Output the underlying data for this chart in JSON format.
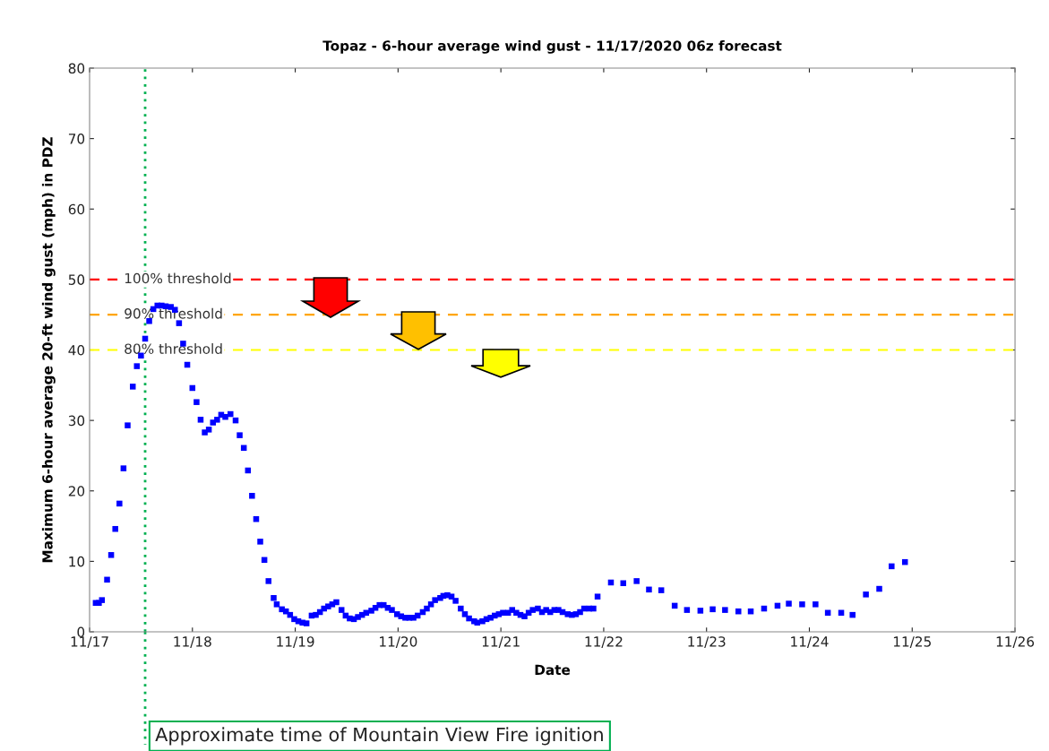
{
  "chart_data": {
    "type": "scatter",
    "title": "Topaz - 6-hour average wind gust - 11/17/2020 06z forecast",
    "xlabel": "Date",
    "ylabel": "Maximum 6-hour average 20-ft wind gust (mph) in PDZ",
    "x": [
      "2020-11-17T01:26",
      "2020-11-17T02:10",
      "2020-11-17T02:53",
      "2020-11-17T04:05",
      "2020-11-17T05:02",
      "2020-11-17T06:00",
      "2020-11-17T06:58",
      "2020-11-17T07:55",
      "2020-11-17T08:53",
      "2020-11-17T10:05",
      "2020-11-17T11:02",
      "2020-11-17T12:00",
      "2020-11-17T12:58",
      "2020-11-17T13:55",
      "2020-11-17T14:53",
      "2020-11-17T15:50",
      "2020-11-17T16:48",
      "2020-11-17T17:46",
      "2020-11-17T18:58",
      "2020-11-17T19:55",
      "2020-11-17T20:53",
      "2020-11-17T21:50",
      "2020-11-17T22:48",
      "2020-11-18T00:00",
      "2020-11-18T00:58",
      "2020-11-18T01:55",
      "2020-11-18T02:53",
      "2020-11-18T03:50",
      "2020-11-18T04:48",
      "2020-11-18T05:46",
      "2020-11-18T06:43",
      "2020-11-18T07:41",
      "2020-11-18T08:53",
      "2020-11-18T10:05",
      "2020-11-18T11:02",
      "2020-11-18T12:00",
      "2020-11-18T12:58",
      "2020-11-18T13:55",
      "2020-11-18T14:53",
      "2020-11-18T15:50",
      "2020-11-18T16:48",
      "2020-11-18T17:46",
      "2020-11-18T18:58",
      "2020-11-18T19:41",
      "2020-11-18T20:53",
      "2020-11-18T21:50",
      "2020-11-18T22:48",
      "2020-11-18T23:46",
      "2020-11-19T00:43",
      "2020-11-19T01:41",
      "2020-11-19T02:38",
      "2020-11-19T03:50",
      "2020-11-19T04:48",
      "2020-11-19T05:46",
      "2020-11-19T06:43",
      "2020-11-19T07:41",
      "2020-11-19T08:38",
      "2020-11-19T09:36",
      "2020-11-19T10:48",
      "2020-11-19T11:46",
      "2020-11-19T12:43",
      "2020-11-19T13:41",
      "2020-11-19T14:38",
      "2020-11-19T15:36",
      "2020-11-19T16:34",
      "2020-11-19T17:46",
      "2020-11-19T18:43",
      "2020-11-19T19:41",
      "2020-11-19T20:38",
      "2020-11-19T21:36",
      "2020-11-19T22:34",
      "2020-11-19T23:46",
      "2020-11-20T00:43",
      "2020-11-20T01:41",
      "2020-11-20T02:38",
      "2020-11-20T03:36",
      "2020-11-20T04:34",
      "2020-11-20T05:46",
      "2020-11-20T06:43",
      "2020-11-20T07:41",
      "2020-11-20T08:38",
      "2020-11-20T09:50",
      "2020-11-20T10:34",
      "2020-11-20T11:31",
      "2020-11-20T12:29",
      "2020-11-20T13:26",
      "2020-11-20T14:38",
      "2020-11-20T15:36",
      "2020-11-20T16:34",
      "2020-11-20T17:46",
      "2020-11-20T18:29",
      "2020-11-20T19:41",
      "2020-11-20T20:38",
      "2020-11-20T21:36",
      "2020-11-20T22:34",
      "2020-11-20T23:31",
      "2020-11-21T00:29",
      "2020-11-21T01:41",
      "2020-11-21T02:38",
      "2020-11-21T03:36",
      "2020-11-21T04:34",
      "2020-11-21T05:31",
      "2020-11-21T06:29",
      "2020-11-21T07:26",
      "2020-11-21T08:38",
      "2020-11-21T09:36",
      "2020-11-21T10:34",
      "2020-11-21T11:31",
      "2020-11-21T12:29",
      "2020-11-21T13:26",
      "2020-11-21T14:24",
      "2020-11-21T15:36",
      "2020-11-21T16:34",
      "2020-11-21T17:31",
      "2020-11-21T18:29",
      "2020-11-21T19:26",
      "2020-11-21T20:38",
      "2020-11-21T21:36",
      "2020-11-21T22:34",
      "2020-11-22T01:41",
      "2020-11-22T04:34",
      "2020-11-22T07:41",
      "2020-11-22T10:34",
      "2020-11-22T13:26",
      "2020-11-22T16:34",
      "2020-11-22T19:26",
      "2020-11-22T22:34",
      "2020-11-23T01:26",
      "2020-11-23T04:19",
      "2020-11-23T07:26",
      "2020-11-23T10:19",
      "2020-11-23T13:26",
      "2020-11-23T16:34",
      "2020-11-23T19:12",
      "2020-11-23T22:19",
      "2020-11-24T01:26",
      "2020-11-24T04:19",
      "2020-11-24T07:26",
      "2020-11-24T10:05",
      "2020-11-24T13:12",
      "2020-11-24T16:19",
      "2020-11-24T19:12",
      "2020-11-24T22:19"
    ],
    "series": [
      {
        "color": "#0000ff",
        "values": [
          4.1,
          4.1,
          4.5,
          7.4,
          10.9,
          14.6,
          18.2,
          23.2,
          29.3,
          34.8,
          37.7,
          39.2,
          41.6,
          44.1,
          45.8,
          46.3,
          46.3,
          46.2,
          46.1,
          45.7,
          43.8,
          40.9,
          37.9,
          34.6,
          32.6,
          30.1,
          28.3,
          28.7,
          29.7,
          30.1,
          30.8,
          30.5,
          30.9,
          30.0,
          27.9,
          26.1,
          22.9,
          19.3,
          16.0,
          12.8,
          10.2,
          7.2,
          4.8,
          3.9,
          3.2,
          2.9,
          2.4,
          1.8,
          1.5,
          1.3,
          1.2,
          2.3,
          2.4,
          2.8,
          3.3,
          3.6,
          3.9,
          4.2,
          3.1,
          2.3,
          1.9,
          1.8,
          2.1,
          2.4,
          2.7,
          3.0,
          3.4,
          3.8,
          3.8,
          3.4,
          3.1,
          2.5,
          2.2,
          2.0,
          2.0,
          2.0,
          2.3,
          2.8,
          3.3,
          3.9,
          4.5,
          4.8,
          5.1,
          5.2,
          5.0,
          4.4,
          3.3,
          2.5,
          1.9,
          1.5,
          1.3,
          1.5,
          1.8,
          2.0,
          2.3,
          2.5,
          2.7,
          2.7,
          3.1,
          2.7,
          2.4,
          2.2,
          2.7,
          3.1,
          3.3,
          2.8,
          3.1,
          2.8,
          3.1,
          3.1,
          2.8,
          2.5,
          2.4,
          2.5,
          2.8,
          3.3,
          3.3,
          3.3,
          5.0,
          7.0,
          6.9,
          7.2,
          6.0,
          5.9,
          3.7,
          3.1,
          3.0,
          3.2,
          3.1,
          2.9,
          2.9,
          3.3,
          3.7,
          4.0,
          3.9,
          3.9,
          2.7,
          2.7,
          2.4,
          5.3,
          6.1,
          9.3,
          9.9
        ]
      }
    ],
    "marker": "square",
    "xlim": [
      "2020-11-17",
      "2020-11-26"
    ],
    "xticks": [
      {
        "value": "2020-11-17",
        "label": "11/17"
      },
      {
        "value": "2020-11-18",
        "label": "11/18"
      },
      {
        "value": "2020-11-19",
        "label": "11/19"
      },
      {
        "value": "2020-11-20",
        "label": "11/20"
      },
      {
        "value": "2020-11-21",
        "label": "11/21"
      },
      {
        "value": "2020-11-22",
        "label": "11/22"
      },
      {
        "value": "2020-11-23",
        "label": "11/23"
      },
      {
        "value": "2020-11-24",
        "label": "11/24"
      },
      {
        "value": "2020-11-25",
        "label": "11/25"
      },
      {
        "value": "2020-11-26",
        "label": "11/26"
      }
    ],
    "ylim": [
      0,
      80
    ],
    "yticks": [
      0,
      10,
      20,
      30,
      40,
      50,
      60,
      70,
      80
    ],
    "ref_lines": [
      {
        "axis": "y",
        "value": 50,
        "label": "100% threshold",
        "color": "#ff0000",
        "line_style": "dashed"
      },
      {
        "axis": "y",
        "value": 45,
        "label": "90% threshold",
        "color": "#ffa500",
        "line_style": "dashed"
      },
      {
        "axis": "y",
        "value": 40,
        "label": "80% threshold",
        "color": "#ffff00",
        "line_style": "dashed"
      },
      {
        "axis": "x",
        "value": "2020-11-17T12:58",
        "label": "Approximate time of Mountain View Fire ignition",
        "color": "#00b050",
        "line_style": "dotted"
      }
    ],
    "grid": false
  }
}
